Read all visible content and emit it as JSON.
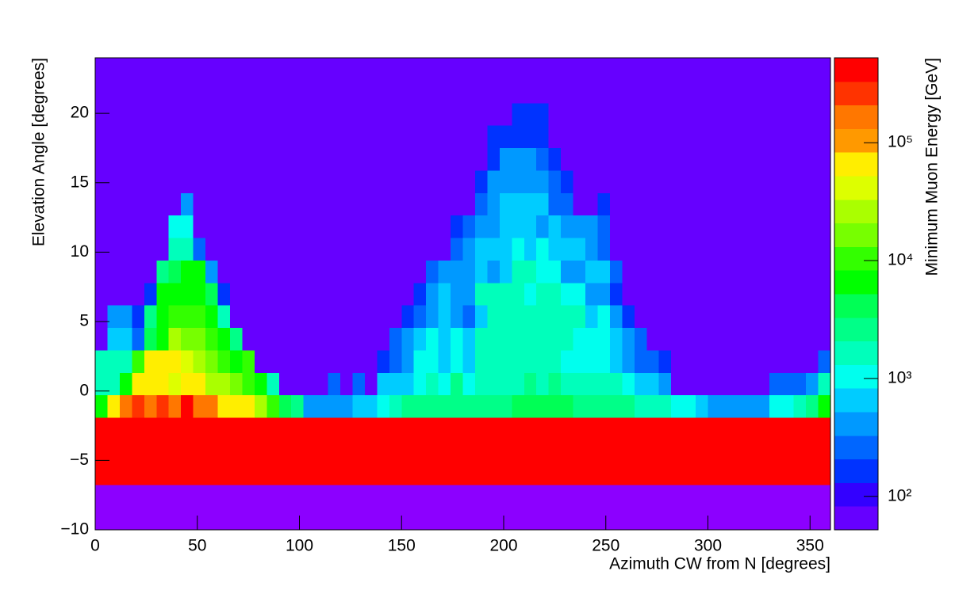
{
  "chart_data": {
    "type": "heatmap",
    "xlabel": "Azimuth CW from N [degrees]",
    "ylabel": "Elevation Angle [degrees]",
    "zlabel": "Minimum Muon Energy [GeV]",
    "xlim": [
      0,
      360
    ],
    "ylim": [
      -10,
      24
    ],
    "zlim": [
      52,
      525000
    ],
    "zlog": true,
    "xticks": [
      0,
      50,
      100,
      150,
      200,
      250,
      300,
      350
    ],
    "yticks": [
      {
        "value": -10,
        "label": "−10"
      },
      {
        "value": -5,
        "label": "−5"
      },
      0,
      5,
      10,
      15,
      20
    ],
    "zticks": [
      {
        "value": 100,
        "label": "10²"
      },
      {
        "value": 1000,
        "label": "10³"
      },
      {
        "value": 10000,
        "label": "10⁴"
      },
      {
        "value": 100000,
        "label": "10⁵"
      }
    ],
    "frame_fill": "#8c00ff",
    "palette": [
      "#6600ff",
      "#3300ff",
      "#0033ff",
      "#0066ff",
      "#0099ff",
      "#00ccff",
      "#00ffee",
      "#00ffbb",
      "#00ff88",
      "#00ff55",
      "#00ff00",
      "#33ff00",
      "#77ff00",
      "#aaff00",
      "#ddff00",
      "#ffee00",
      "#ff9900",
      "#ff7700",
      "#ff3300",
      "#ff0000"
    ],
    "xbins": [
      0,
      6,
      12,
      18,
      24,
      30,
      36,
      42,
      48,
      54,
      60,
      66,
      72,
      78,
      84,
      90,
      96,
      102,
      108,
      114,
      120,
      126,
      132,
      138,
      144,
      150,
      156,
      162,
      168,
      174,
      180,
      186,
      192,
      198,
      204,
      210,
      216,
      222,
      228,
      234,
      240,
      246,
      252,
      258,
      264,
      270,
      276,
      282,
      288,
      294,
      300,
      306,
      312,
      318,
      324,
      330,
      336,
      342,
      348,
      354,
      360
    ],
    "ybins": [
      -10,
      -8.381,
      -6.762,
      -5.143,
      -3.524,
      -1.905,
      -0.286,
      1.333,
      2.952,
      4.571,
      6.19,
      7.81,
      9.429,
      11.048,
      12.667,
      14.286,
      15.905,
      17.524,
      19.143,
      20.762,
      22.381,
      24
    ],
    "z": [
      [
        null,
        null,
        null,
        null,
        null,
        null,
        null,
        null,
        null,
        null,
        null,
        null,
        null,
        null,
        null,
        null,
        null,
        null,
        null,
        null,
        null,
        null,
        null,
        null,
        null,
        null,
        null,
        null,
        null,
        null,
        null,
        null,
        null,
        null,
        null,
        null,
        null,
        null,
        null,
        null,
        null,
        null,
        null,
        null,
        null,
        null,
        null,
        null,
        null,
        null,
        null,
        null,
        null,
        null,
        null,
        null,
        null,
        null,
        null,
        null
      ],
      [
        null,
        null,
        null,
        null,
        null,
        null,
        null,
        null,
        null,
        null,
        null,
        null,
        null,
        null,
        null,
        null,
        null,
        null,
        null,
        null,
        null,
        null,
        null,
        null,
        null,
        null,
        null,
        null,
        null,
        null,
        null,
        null,
        null,
        null,
        null,
        null,
        null,
        null,
        null,
        null,
        null,
        null,
        null,
        null,
        null,
        null,
        null,
        null,
        null,
        null,
        null,
        null,
        null,
        null,
        null,
        null,
        null,
        null,
        null,
        null
      ],
      [
        417000,
        417000,
        417000,
        417000,
        417000,
        417000,
        417000,
        417000,
        417000,
        417000,
        417000,
        417000,
        417000,
        417000,
        417000,
        417000,
        417000,
        417000,
        417000,
        417000,
        417000,
        417000,
        417000,
        417000,
        417000,
        417000,
        417000,
        417000,
        417000,
        417000,
        417000,
        417000,
        417000,
        417000,
        417000,
        417000,
        417000,
        417000,
        417000,
        417000,
        417000,
        417000,
        417000,
        417000,
        417000,
        417000,
        417000,
        417000,
        417000,
        417000,
        417000,
        417000,
        417000,
        417000,
        417000,
        417000,
        417000,
        417000,
        417000,
        417000
      ],
      [
        417000,
        417000,
        417000,
        417000,
        417000,
        417000,
        417000,
        417000,
        417000,
        417000,
        417000,
        417000,
        417000,
        417000,
        417000,
        417000,
        417000,
        417000,
        417000,
        417000,
        417000,
        417000,
        417000,
        417000,
        417000,
        417000,
        417000,
        417000,
        417000,
        417000,
        417000,
        417000,
        417000,
        417000,
        417000,
        417000,
        417000,
        417000,
        417000,
        417000,
        417000,
        417000,
        417000,
        417000,
        417000,
        417000,
        417000,
        417000,
        417000,
        417000,
        417000,
        417000,
        417000,
        417000,
        417000,
        417000,
        417000,
        417000,
        417000,
        417000
      ],
      [
        417000,
        417000,
        417000,
        417000,
        417000,
        417000,
        417000,
        417000,
        417000,
        417000,
        417000,
        417000,
        417000,
        417000,
        417000,
        417000,
        417000,
        417000,
        417000,
        417000,
        417000,
        417000,
        417000,
        417000,
        417000,
        417000,
        417000,
        417000,
        417000,
        417000,
        417000,
        417000,
        417000,
        417000,
        417000,
        417000,
        417000,
        417000,
        417000,
        417000,
        417000,
        417000,
        417000,
        417000,
        417000,
        417000,
        417000,
        417000,
        417000,
        417000,
        417000,
        417000,
        417000,
        417000,
        417000,
        417000,
        417000,
        417000,
        417000,
        417000
      ],
      [
        6610,
        66100,
        166000,
        263000,
        166000,
        263000,
        166000,
        417000,
        166000,
        166000,
        66100,
        66100,
        66100,
        26300,
        10500,
        4170,
        2630,
        417,
        417,
        417,
        417,
        661,
        661,
        1050,
        1660,
        2630,
        2630,
        2630,
        2630,
        2630,
        2630,
        2630,
        2630,
        2630,
        4170,
        4170,
        4170,
        4170,
        4170,
        2630,
        2630,
        2630,
        2630,
        2630,
        1660,
        1660,
        1660,
        1050,
        1050,
        661,
        417,
        417,
        417,
        417,
        417,
        1050,
        1050,
        1660,
        2630,
        6610
      ],
      [
        1660,
        1660,
        6610,
        66100,
        66100,
        66100,
        41700,
        66100,
        66100,
        26300,
        26300,
        16600,
        10500,
        6610,
        1660,
        66,
        66,
        66,
        66,
        263,
        66,
        263,
        66,
        661,
        661,
        661,
        1050,
        1660,
        1050,
        2630,
        1050,
        1660,
        1660,
        1660,
        1660,
        2630,
        1660,
        2630,
        1660,
        1660,
        1660,
        1660,
        1660,
        1050,
        661,
        661,
        417,
        66,
        66,
        66,
        66,
        66,
        66,
        66,
        66,
        263,
        263,
        263,
        417,
        1660
      ],
      [
        1660,
        1660,
        1660,
        10500,
        66100,
        66100,
        66100,
        41700,
        26300,
        16600,
        10500,
        6610,
        10500,
        66,
        66,
        66,
        66,
        66,
        66,
        66,
        66,
        66,
        66,
        164,
        263,
        417,
        1050,
        1050,
        661,
        1050,
        661,
        1660,
        1660,
        1660,
        1660,
        1660,
        1660,
        1660,
        1050,
        1050,
        1050,
        1050,
        661,
        417,
        263,
        263,
        164,
        66,
        66,
        66,
        66,
        66,
        66,
        66,
        66,
        66,
        66,
        66,
        66,
        263
      ],
      [
        66,
        661,
        661,
        263,
        4170,
        6610,
        26300,
        16600,
        16600,
        10500,
        6610,
        2630,
        66,
        66,
        66,
        66,
        66,
        66,
        66,
        66,
        66,
        66,
        66,
        66,
        263,
        417,
        661,
        1050,
        661,
        1050,
        661,
        1660,
        1660,
        1660,
        1660,
        1660,
        1660,
        1660,
        1660,
        1050,
        1050,
        1050,
        661,
        417,
        263,
        66,
        66,
        66,
        66,
        66,
        66,
        66,
        66,
        66,
        66,
        66,
        66,
        66,
        66,
        66
      ],
      [
        66,
        417,
        417,
        164,
        2630,
        6610,
        10500,
        10500,
        10500,
        6610,
        1660,
        66,
        66,
        66,
        66,
        66,
        66,
        66,
        66,
        66,
        66,
        66,
        66,
        66,
        66,
        164,
        263,
        417,
        661,
        417,
        263,
        661,
        1660,
        1660,
        1660,
        1660,
        1660,
        1660,
        1660,
        1660,
        661,
        1050,
        417,
        164,
        66,
        66,
        66,
        66,
        66,
        66,
        66,
        66,
        66,
        66,
        66,
        66,
        66,
        66,
        66,
        66
      ],
      [
        66,
        66,
        66,
        66,
        164,
        6610,
        6610,
        6610,
        6610,
        4170,
        164,
        66,
        66,
        66,
        66,
        66,
        66,
        66,
        66,
        66,
        66,
        66,
        66,
        66,
        66,
        66,
        164,
        417,
        661,
        417,
        417,
        1660,
        1660,
        1660,
        1660,
        1050,
        1660,
        1660,
        1050,
        1050,
        417,
        417,
        164,
        66,
        66,
        66,
        66,
        66,
        66,
        66,
        66,
        66,
        66,
        66,
        66,
        66,
        66,
        66,
        66,
        66
      ],
      [
        66,
        66,
        66,
        66,
        66,
        2630,
        4170,
        6610,
        6610,
        417,
        66,
        66,
        66,
        66,
        66,
        66,
        66,
        66,
        66,
        66,
        66,
        66,
        66,
        66,
        66,
        66,
        66,
        263,
        417,
        417,
        417,
        661,
        417,
        661,
        1660,
        1660,
        1050,
        1050,
        417,
        417,
        661,
        661,
        263,
        66,
        66,
        66,
        66,
        66,
        66,
        66,
        66,
        66,
        66,
        66,
        66,
        66,
        66,
        66,
        66,
        66
      ],
      [
        66,
        66,
        66,
        66,
        66,
        66,
        1660,
        1660,
        263,
        66,
        66,
        66,
        66,
        66,
        66,
        66,
        66,
        66,
        66,
        66,
        66,
        66,
        66,
        66,
        66,
        66,
        66,
        66,
        66,
        263,
        417,
        661,
        661,
        661,
        1050,
        661,
        1050,
        661,
        661,
        661,
        417,
        263,
        66,
        66,
        66,
        66,
        66,
        66,
        66,
        66,
        66,
        66,
        66,
        66,
        66,
        66,
        66,
        66,
        66,
        66
      ],
      [
        66,
        66,
        66,
        66,
        66,
        66,
        1050,
        1050,
        66,
        66,
        66,
        66,
        66,
        66,
        66,
        66,
        66,
        66,
        66,
        66,
        66,
        66,
        66,
        66,
        66,
        66,
        66,
        66,
        66,
        164,
        263,
        417,
        417,
        661,
        661,
        661,
        417,
        661,
        417,
        417,
        417,
        263,
        66,
        66,
        66,
        66,
        66,
        66,
        66,
        66,
        66,
        66,
        66,
        66,
        66,
        66,
        66,
        66,
        66,
        66
      ],
      [
        66,
        66,
        66,
        66,
        66,
        66,
        66,
        417,
        66,
        66,
        66,
        66,
        66,
        66,
        66,
        66,
        66,
        66,
        66,
        66,
        66,
        66,
        66,
        66,
        66,
        66,
        66,
        66,
        66,
        66,
        66,
        263,
        417,
        661,
        661,
        661,
        661,
        263,
        263,
        66,
        66,
        164,
        66,
        66,
        66,
        66,
        66,
        66,
        66,
        66,
        66,
        66,
        66,
        66,
        66,
        66,
        66,
        66,
        66,
        66
      ],
      [
        66,
        66,
        66,
        66,
        66,
        66,
        66,
        66,
        66,
        66,
        66,
        66,
        66,
        66,
        66,
        66,
        66,
        66,
        66,
        66,
        66,
        66,
        66,
        66,
        66,
        66,
        66,
        66,
        66,
        66,
        66,
        164,
        417,
        417,
        417,
        417,
        417,
        263,
        164,
        66,
        66,
        66,
        66,
        66,
        66,
        66,
        66,
        66,
        66,
        66,
        66,
        66,
        66,
        66,
        66,
        66,
        66,
        66,
        66,
        66
      ],
      [
        66,
        66,
        66,
        66,
        66,
        66,
        66,
        66,
        66,
        66,
        66,
        66,
        66,
        66,
        66,
        66,
        66,
        66,
        66,
        66,
        66,
        66,
        66,
        66,
        66,
        66,
        66,
        66,
        66,
        66,
        66,
        66,
        164,
        417,
        417,
        417,
        263,
        164,
        66,
        66,
        66,
        66,
        66,
        66,
        66,
        66,
        66,
        66,
        66,
        66,
        66,
        66,
        66,
        66,
        66,
        66,
        66,
        66,
        66,
        66
      ],
      [
        66,
        66,
        66,
        66,
        66,
        66,
        66,
        66,
        66,
        66,
        66,
        66,
        66,
        66,
        66,
        66,
        66,
        66,
        66,
        66,
        66,
        66,
        66,
        66,
        66,
        66,
        66,
        66,
        66,
        66,
        66,
        66,
        164,
        164,
        164,
        164,
        164,
        66,
        66,
        66,
        66,
        66,
        66,
        66,
        66,
        66,
        66,
        66,
        66,
        66,
        66,
        66,
        66,
        66,
        66,
        66,
        66,
        66,
        66,
        66
      ],
      [
        66,
        66,
        66,
        66,
        66,
        66,
        66,
        66,
        66,
        66,
        66,
        66,
        66,
        66,
        66,
        66,
        66,
        66,
        66,
        66,
        66,
        66,
        66,
        66,
        66,
        66,
        66,
        66,
        66,
        66,
        66,
        66,
        66,
        66,
        164,
        164,
        164,
        66,
        66,
        66,
        66,
        66,
        66,
        66,
        66,
        66,
        66,
        66,
        66,
        66,
        66,
        66,
        66,
        66,
        66,
        66,
        66,
        66,
        66,
        66
      ],
      [
        66,
        66,
        66,
        66,
        66,
        66,
        66,
        66,
        66,
        66,
        66,
        66,
        66,
        66,
        66,
        66,
        66,
        66,
        66,
        66,
        66,
        66,
        66,
        66,
        66,
        66,
        66,
        66,
        66,
        66,
        66,
        66,
        66,
        66,
        66,
        66,
        66,
        66,
        66,
        66,
        66,
        66,
        66,
        66,
        66,
        66,
        66,
        66,
        66,
        66,
        66,
        66,
        66,
        66,
        66,
        66,
        66,
        66,
        66,
        66
      ],
      [
        66,
        66,
        66,
        66,
        66,
        66,
        66,
        66,
        66,
        66,
        66,
        66,
        66,
        66,
        66,
        66,
        66,
        66,
        66,
        66,
        66,
        66,
        66,
        66,
        66,
        66,
        66,
        66,
        66,
        66,
        66,
        66,
        66,
        66,
        66,
        66,
        66,
        66,
        66,
        66,
        66,
        66,
        66,
        66,
        66,
        66,
        66,
        66,
        66,
        66,
        66,
        66,
        66,
        66,
        66,
        66,
        66,
        66,
        66,
        66
      ]
    ]
  }
}
